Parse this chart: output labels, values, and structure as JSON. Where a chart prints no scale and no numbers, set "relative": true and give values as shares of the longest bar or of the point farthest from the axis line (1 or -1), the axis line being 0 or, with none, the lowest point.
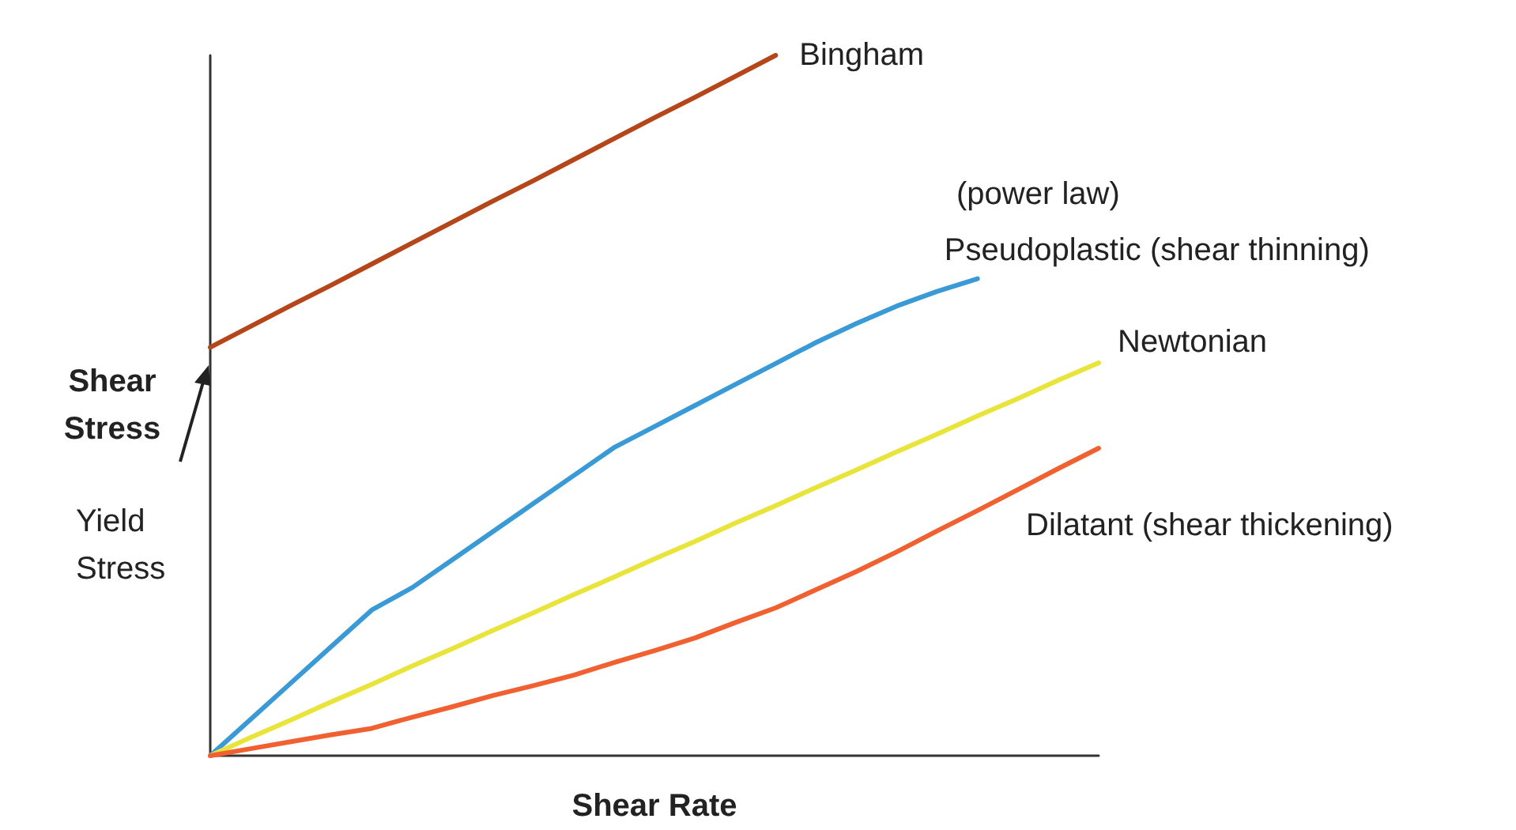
{
  "chart_data": {
    "type": "line",
    "relative": true,
    "xlabel": "Shear Rate",
    "ylabel": "Shear Stress",
    "categories": [
      null,
      null,
      null,
      null,
      null,
      null,
      null,
      null,
      null,
      null,
      null,
      null,
      null,
      null,
      null,
      null,
      null,
      null,
      null,
      null,
      null,
      null,
      null
    ],
    "series": [
      {
        "name": "Bingham",
        "color": "#b5461a",
        "values": [
          0.583,
          0.613,
          0.643,
          0.672,
          0.702,
          0.732,
          0.762,
          0.792,
          0.821,
          0.851,
          0.881,
          0.911,
          0.94,
          0.97,
          1.0,
          null,
          null,
          null,
          null,
          null,
          null,
          null,
          null
        ]
      },
      {
        "name": "Pseudoplastic (shear thinning)",
        "color": "#3a9ad6",
        "values": [
          0,
          0.052,
          0.104,
          0.156,
          0.208,
          0.24,
          0.28,
          0.32,
          0.36,
          0.4,
          0.44,
          0.47,
          0.5,
          0.53,
          0.56,
          0.59,
          0.617,
          0.642,
          0.663,
          0.681,
          null,
          null,
          null
        ]
      },
      {
        "name": "Newtonian",
        "color": "#e8e43a",
        "values": [
          0,
          0.026,
          0.051,
          0.077,
          0.102,
          0.128,
          0.153,
          0.179,
          0.204,
          0.23,
          0.255,
          0.281,
          0.306,
          0.332,
          0.357,
          0.383,
          0.408,
          0.434,
          0.459,
          0.485,
          0.51,
          0.536,
          0.561
        ]
      },
      {
        "name": "Dilatant (shear thickening)",
        "color": "#f06030",
        "values": [
          0,
          0.01,
          0.02,
          0.03,
          0.039,
          0.055,
          0.07,
          0.086,
          0.1,
          0.115,
          0.133,
          0.15,
          0.168,
          0.19,
          0.211,
          0.237,
          0.263,
          0.291,
          0.321,
          0.35,
          0.38,
          0.41,
          0.439
        ]
      }
    ],
    "annotations": [
      "(power law)",
      "Yield Stress"
    ],
    "grid": false,
    "legend": false,
    "marker": "none",
    "line_style": "solid"
  }
}
